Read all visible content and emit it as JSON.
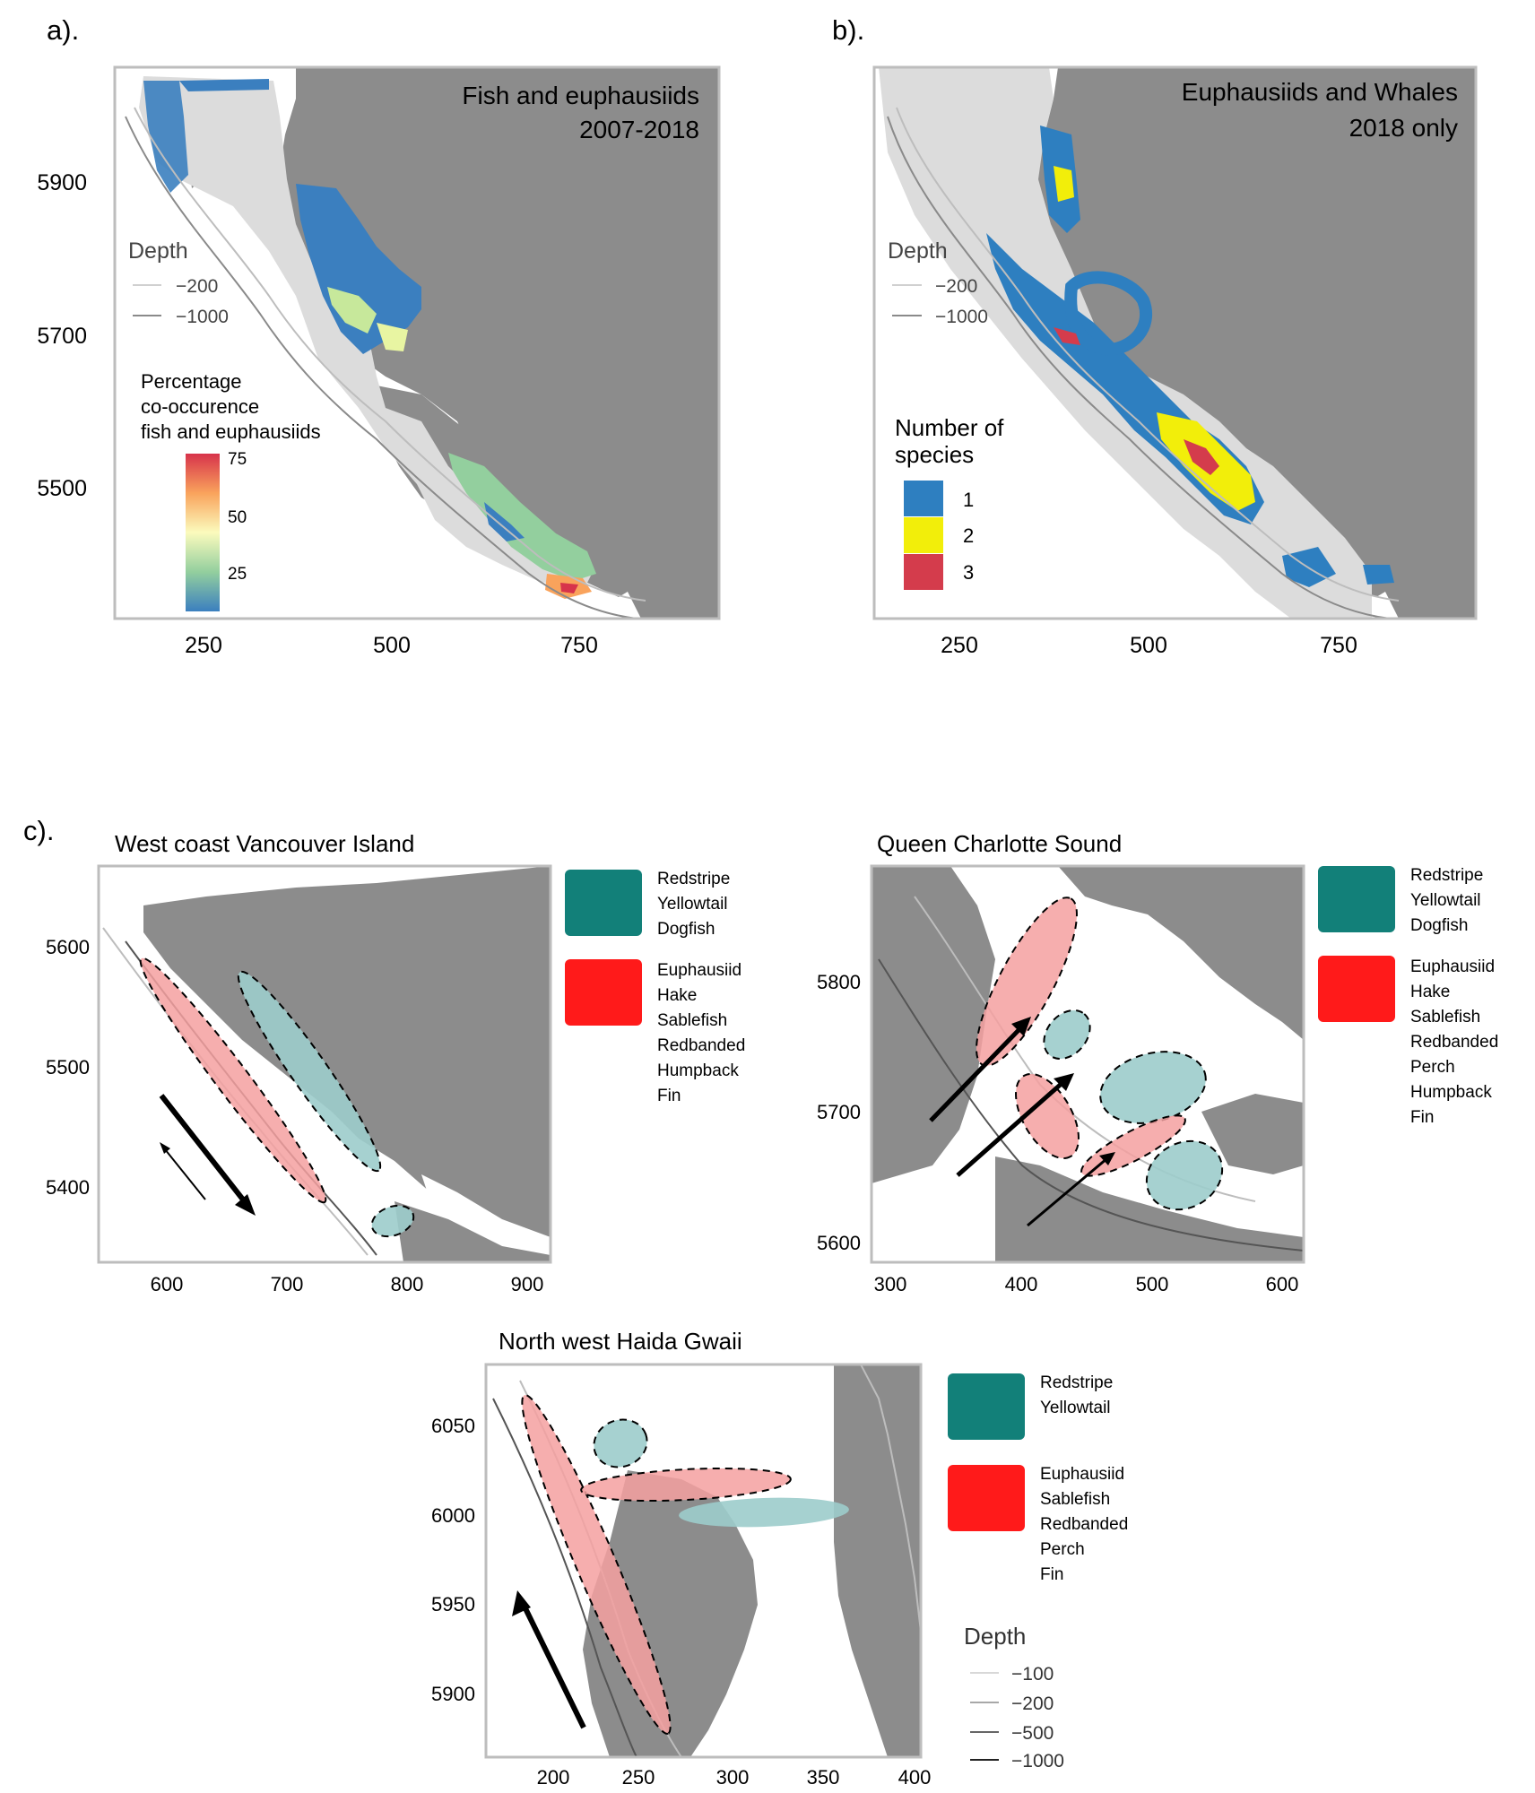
{
  "panel_a": {
    "tag": "a).",
    "title_line1": "Fish and euphausiids",
    "title_line2": "2007-2018",
    "x_ticks": [
      "250",
      "500",
      "750"
    ],
    "y_ticks": [
      "5900",
      "5700",
      "5500"
    ],
    "depth_legend": {
      "title": "Depth",
      "items": [
        "−200",
        "−1000"
      ]
    },
    "color_legend": {
      "title_line1": "Percentage",
      "title_line2": "co-occurence",
      "title_line3": "fish and euphausiids",
      "ticks": [
        "75",
        "50",
        "25"
      ]
    }
  },
  "panel_b": {
    "tag": "b).",
    "title_line1": "Euphausiids and Whales",
    "title_line2": "2018 only",
    "x_ticks": [
      "250",
      "500",
      "750"
    ],
    "depth_legend": {
      "title": "Depth",
      "items": [
        "−200",
        "−1000"
      ]
    },
    "species_legend": {
      "title_line1": "Number of",
      "title_line2": "species",
      "items": [
        {
          "label": "1",
          "color": "#2e7fc0"
        },
        {
          "label": "2",
          "color": "#f2ee0a"
        },
        {
          "label": "3",
          "color": "#d43c4c"
        }
      ]
    }
  },
  "panel_c": {
    "tag": "c).",
    "wcvi": {
      "title": "West coast Vancouver Island",
      "x_ticks": [
        "600",
        "700",
        "800",
        "900"
      ],
      "y_ticks": [
        "5600",
        "5500",
        "5400"
      ],
      "legend_teal": [
        "Redstripe",
        "Yellowtail",
        "Dogfish"
      ],
      "legend_red": [
        "Euphausiid",
        "Hake",
        "Sablefish",
        "Redbanded",
        "Humpback",
        "Fin"
      ]
    },
    "qcs": {
      "title": "Queen Charlotte Sound",
      "x_ticks": [
        "300",
        "400",
        "500",
        "600"
      ],
      "y_ticks": [
        "5800",
        "5700",
        "5600"
      ],
      "legend_teal": [
        "Redstripe",
        "Yellowtail",
        "Dogfish"
      ],
      "legend_red": [
        "Euphausiid",
        "Hake",
        "Sablefish",
        "Redbanded",
        "Perch",
        "Humpback",
        "Fin"
      ]
    },
    "nwhg": {
      "title": "North west Haida Gwaii",
      "x_ticks": [
        "200",
        "250",
        "300",
        "350",
        "400"
      ],
      "y_ticks": [
        "6050",
        "6000",
        "5950",
        "5900"
      ],
      "legend_teal": [
        "Redstripe",
        "Yellowtail"
      ],
      "legend_red": [
        "Euphausiid",
        "Sablefish",
        "Redbanded",
        "Perch",
        "Fin"
      ],
      "depth_legend": {
        "title": "Depth",
        "items": [
          "−100",
          "−200",
          "−500",
          "−1000"
        ]
      }
    }
  },
  "colors": {
    "land": "#8c8c8c",
    "survey": "#dcdcdc",
    "teal": "#128079",
    "red": "#ff1a1a"
  }
}
